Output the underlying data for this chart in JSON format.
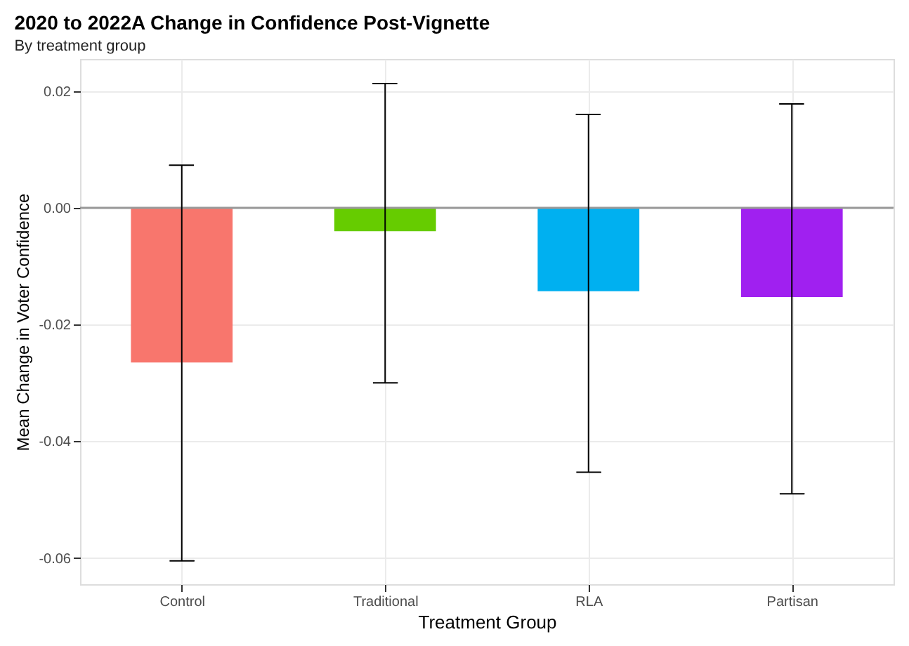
{
  "chart_data": {
    "type": "bar",
    "title": "2020 to 2022A Change in Confidence Post-Vignette",
    "subtitle": "By treatment group",
    "xlabel": "Treatment Group",
    "ylabel": "Mean Change in Voter Confidence",
    "categories": [
      "Control",
      "Traditional",
      "RLA",
      "Partisan"
    ],
    "values": [
      -0.0265,
      -0.004,
      -0.0143,
      -0.0153
    ],
    "colors": [
      "#f8766d",
      "#66cc00",
      "#00b0f0",
      "#a020f0"
    ],
    "errors": [
      [
        -0.0605,
        0.0073
      ],
      [
        -0.03,
        0.0213
      ],
      [
        -0.0453,
        0.016
      ],
      [
        -0.049,
        0.0178
      ]
    ],
    "ylim": [
      -0.0645,
      0.0255
    ],
    "yticks": [
      {
        "value": -0.06,
        "label": "-0.06"
      },
      {
        "value": -0.04,
        "label": "-0.04"
      },
      {
        "value": -0.02,
        "label": "-0.02"
      },
      {
        "value": 0,
        "label": "0.00"
      },
      {
        "value": 0.02,
        "label": "0.02"
      }
    ],
    "ref_lines": [
      {
        "axis": "y",
        "value": 0,
        "color": "#999999"
      }
    ],
    "grid": true
  }
}
